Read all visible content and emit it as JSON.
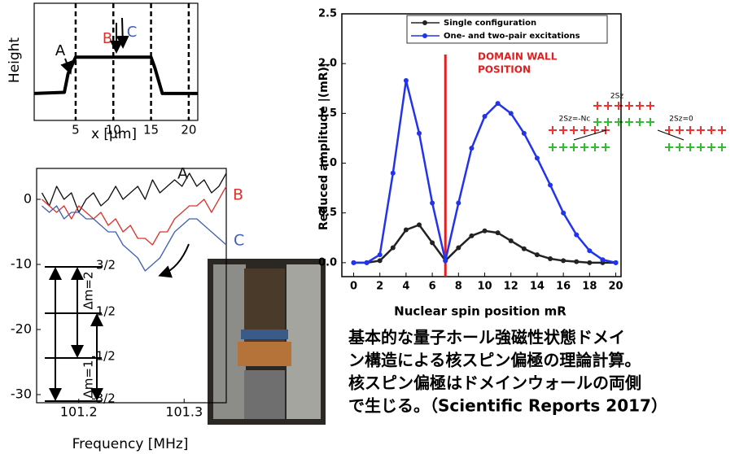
{
  "chart_data": [
    {
      "type": "line",
      "x": [
        -0.5,
        3.5,
        4,
        5,
        5.5,
        15,
        15.5,
        16.5,
        21.2
      ],
      "values": [
        0.23,
        0.24,
        0.4,
        0.54,
        0.54,
        0.54,
        0.45,
        0.23,
        0.23
      ],
      "color": "#000000",
      "xlim": [
        -0.5,
        21.2
      ],
      "ylim": [
        0,
        1
      ],
      "xticks": [
        5,
        10,
        15,
        20
      ],
      "xgrid": true,
      "xlabel": "x [μm]",
      "ylabel": "Height",
      "annotations": [
        "A",
        "B",
        "C"
      ]
    },
    {
      "type": "line",
      "x": [
        101.165,
        101.172,
        101.179,
        101.186,
        101.193,
        101.2,
        101.207,
        101.214,
        101.221,
        101.228,
        101.235,
        101.242,
        101.249,
        101.256,
        101.263,
        101.27,
        101.277,
        101.284,
        101.291,
        101.298,
        101.305,
        101.312,
        101.319,
        101.326,
        101.333,
        101.34
      ],
      "series": [
        {
          "name": "A",
          "color": "#111111",
          "values": [
            1,
            -1,
            2,
            0,
            1,
            -2,
            0,
            1,
            -1,
            0,
            2,
            0,
            1,
            2,
            0,
            3,
            1,
            2,
            3,
            2,
            4,
            2,
            3,
            1,
            2,
            4
          ]
        },
        {
          "name": "B",
          "color": "#d9342b",
          "values": [
            0,
            -1,
            -2,
            -1,
            -3,
            -1,
            -2,
            -3,
            -2,
            -4,
            -3,
            -5,
            -4,
            -6,
            -6,
            -7,
            -5,
            -5,
            -3,
            -2,
            -1,
            -1,
            0,
            -2,
            0,
            2
          ]
        },
        {
          "name": "C",
          "color": "#3f5fb0",
          "values": [
            -1,
            -2,
            -1,
            -3,
            -2,
            -2,
            -3,
            -3,
            -4,
            -5,
            -5,
            -7,
            -8,
            -9,
            -11,
            -10,
            -9,
            -7,
            -5,
            -4,
            -3,
            -3,
            -4,
            -5,
            -6,
            -7
          ]
        }
      ],
      "xlim": [
        101.16,
        101.34
      ],
      "ylim": [
        -31.25,
        4.75
      ],
      "xticks": [
        101.2,
        101.3
      ],
      "yticks": [
        0,
        -10,
        -20,
        -30
      ],
      "xlabel": "Frequency [MHz]",
      "annotations": [
        "3/2",
        "1/2",
        "-1/2",
        "-3/2",
        "Δm=2",
        "Δm=1"
      ]
    },
    {
      "type": "line",
      "x": [
        0,
        1,
        2,
        3,
        4,
        5,
        6,
        7,
        8,
        9,
        10,
        11,
        12,
        13,
        14,
        15,
        16,
        17,
        18,
        19,
        20
      ],
      "series": [
        {
          "name": "Single configuration",
          "color": "#222222",
          "values": [
            0,
            0,
            0.02,
            0.15,
            0.33,
            0.38,
            0.2,
            0.02,
            0.15,
            0.27,
            0.32,
            0.3,
            0.22,
            0.14,
            0.08,
            0.04,
            0.02,
            0.01,
            0,
            0,
            0
          ]
        },
        {
          "name": "One- and two-pair excitations",
          "color": "#2233ee",
          "values": [
            0,
            0,
            0.08,
            0.9,
            1.83,
            1.3,
            0.6,
            0.02,
            0.6,
            1.15,
            1.47,
            1.6,
            1.5,
            1.3,
            1.05,
            0.78,
            0.5,
            0.28,
            0.12,
            0.03,
            0
          ]
        }
      ],
      "markers": true,
      "vline": 7,
      "vline_color": "#e02020",
      "xlim": [
        -0.9,
        20.4
      ],
      "ylim": [
        -0.14,
        2.5
      ],
      "xticks": [
        0,
        2,
        4,
        6,
        8,
        10,
        12,
        14,
        16,
        18,
        20
      ],
      "yticks": [
        {
          "value": 0,
          "label": "0.0"
        },
        0.5,
        {
          "value": 1,
          "label": "1.0"
        },
        1.5,
        {
          "value": 2,
          "label": "2.0"
        },
        2.5
      ],
      "xlabel": "Nuclear spin position mR",
      "ylabel": "Reduced amplitude |(mR)|",
      "legend": "top",
      "annotations": [
        "DOMAIN WALL",
        "POSITION",
        "2Sz",
        "2Sz=-Nc",
        "2Sz=0"
      ]
    }
  ],
  "caption": [
    "基本的な量子ホール強磁性状態ドメイ",
    "ン構造による核スピン偏極の理論計算。",
    "核スピン偏極はドメインウォールの両側",
    "で生じる。（Scientific Reports 2017）"
  ]
}
